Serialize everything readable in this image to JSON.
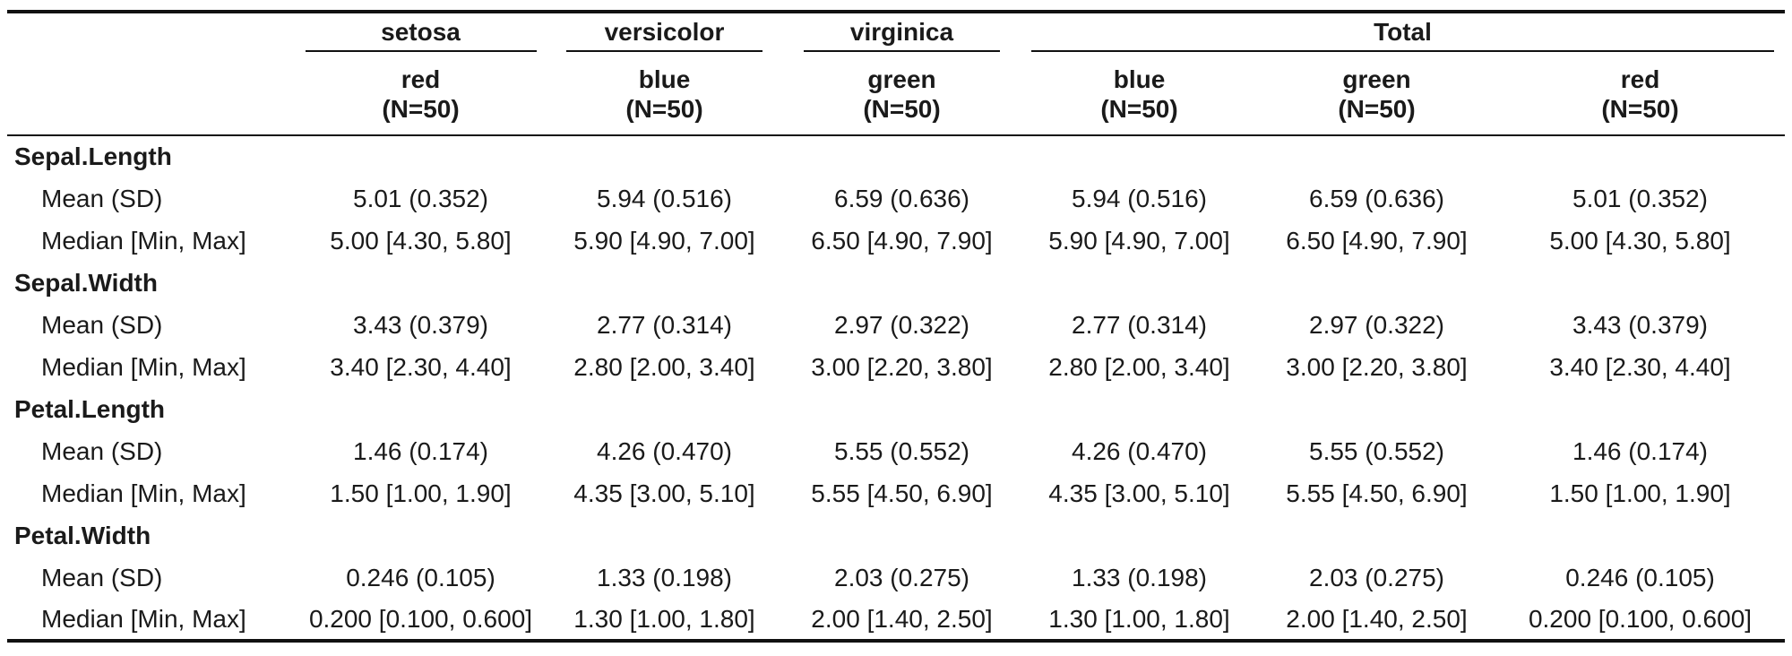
{
  "groups": {
    "setosa": "setosa",
    "versicolor": "versicolor",
    "virginica": "virginica",
    "total": "Total"
  },
  "columns": [
    {
      "name": "red",
      "n": "(N=50)"
    },
    {
      "name": "blue",
      "n": "(N=50)"
    },
    {
      "name": "green",
      "n": "(N=50)"
    },
    {
      "name": "blue",
      "n": "(N=50)"
    },
    {
      "name": "green",
      "n": "(N=50)"
    },
    {
      "name": "red",
      "n": "(N=50)"
    }
  ],
  "rows": [
    {
      "variable": "Sepal.Length",
      "mean_label": "Mean (SD)",
      "mean": [
        "5.01 (0.352)",
        "5.94 (0.516)",
        "6.59 (0.636)",
        "5.94 (0.516)",
        "6.59 (0.636)",
        "5.01 (0.352)"
      ],
      "median_label": "Median [Min, Max]",
      "median": [
        "5.00 [4.30, 5.80]",
        "5.90 [4.90, 7.00]",
        "6.50 [4.90, 7.90]",
        "5.90 [4.90, 7.00]",
        "6.50 [4.90, 7.90]",
        "5.00 [4.30, 5.80]"
      ]
    },
    {
      "variable": "Sepal.Width",
      "mean_label": "Mean (SD)",
      "mean": [
        "3.43 (0.379)",
        "2.77 (0.314)",
        "2.97 (0.322)",
        "2.77 (0.314)",
        "2.97 (0.322)",
        "3.43 (0.379)"
      ],
      "median_label": "Median [Min, Max]",
      "median": [
        "3.40 [2.30, 4.40]",
        "2.80 [2.00, 3.40]",
        "3.00 [2.20, 3.80]",
        "2.80 [2.00, 3.40]",
        "3.00 [2.20, 3.80]",
        "3.40 [2.30, 4.40]"
      ]
    },
    {
      "variable": "Petal.Length",
      "mean_label": "Mean (SD)",
      "mean": [
        "1.46 (0.174)",
        "4.26 (0.470)",
        "5.55 (0.552)",
        "4.26 (0.470)",
        "5.55 (0.552)",
        "1.46 (0.174)"
      ],
      "median_label": "Median [Min, Max]",
      "median": [
        "1.50 [1.00, 1.90]",
        "4.35 [3.00, 5.10]",
        "5.55 [4.50, 6.90]",
        "4.35 [3.00, 5.10]",
        "5.55 [4.50, 6.90]",
        "1.50 [1.00, 1.90]"
      ]
    },
    {
      "variable": "Petal.Width",
      "mean_label": "Mean (SD)",
      "mean": [
        "0.246 (0.105)",
        "1.33 (0.198)",
        "2.03 (0.275)",
        "1.33 (0.198)",
        "2.03 (0.275)",
        "0.246 (0.105)"
      ],
      "median_label": "Median [Min, Max]",
      "median": [
        "0.200 [0.100, 0.600]",
        "1.30 [1.00, 1.80]",
        "2.00 [1.40, 2.50]",
        "1.30 [1.00, 1.80]",
        "2.00 [1.40, 2.50]",
        "0.200 [0.100, 0.600]"
      ]
    }
  ]
}
